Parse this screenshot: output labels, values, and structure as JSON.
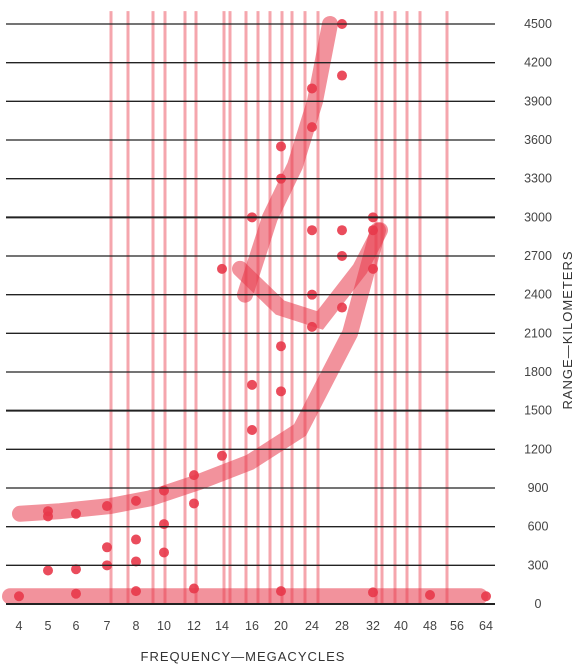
{
  "chart_data": {
    "type": "scatter",
    "title": "",
    "xlabel": "FREQUENCY—MEGACYCLES",
    "ylabel": "RANGE—KILOMETERS",
    "x_tick_labels": [
      "4",
      "5",
      "6",
      "7",
      "8",
      "10",
      "12",
      "14",
      "16",
      "20",
      "24",
      "28",
      "32",
      "40",
      "48",
      "56",
      "64"
    ],
    "y_ticks": [
      0,
      300,
      600,
      900,
      1200,
      1500,
      1800,
      2100,
      2400,
      2700,
      3000,
      3300,
      3600,
      3900,
      4200,
      4500
    ],
    "ylim": [
      0,
      4600
    ],
    "grid": "horizontal",
    "color": "#e8394a",
    "series": [
      {
        "points": [
          [
            5,
            680
          ],
          [
            5,
            720
          ],
          [
            6,
            700
          ],
          [
            7,
            760
          ],
          [
            8,
            800
          ],
          [
            10,
            880
          ],
          [
            12,
            1000
          ],
          [
            14,
            1150
          ],
          [
            16,
            1350
          ],
          [
            20,
            1650
          ],
          [
            24,
            2150
          ],
          [
            28,
            2700
          ],
          [
            32,
            3000
          ],
          [
            7,
            440
          ],
          [
            8,
            500
          ],
          [
            10,
            620
          ],
          [
            12,
            780
          ],
          [
            5,
            260
          ],
          [
            6,
            270
          ],
          [
            7,
            300
          ],
          [
            8,
            330
          ],
          [
            10,
            400
          ],
          [
            14,
            2600
          ],
          [
            16,
            3000
          ],
          [
            20,
            3550
          ],
          [
            24,
            4000
          ],
          [
            28,
            4500
          ],
          [
            28,
            4100
          ],
          [
            24,
            3700
          ],
          [
            20,
            3300
          ],
          [
            16,
            1700
          ],
          [
            20,
            2000
          ],
          [
            24,
            2400
          ],
          [
            28,
            2300
          ],
          [
            32,
            2900
          ],
          [
            28,
            2900
          ],
          [
            32,
            2600
          ],
          [
            24,
            2900
          ],
          [
            4,
            60
          ],
          [
            6,
            80
          ],
          [
            8,
            100
          ],
          [
            12,
            120
          ],
          [
            20,
            100
          ],
          [
            32,
            90
          ],
          [
            48,
            70
          ],
          [
            64,
            60
          ]
        ]
      }
    ]
  }
}
